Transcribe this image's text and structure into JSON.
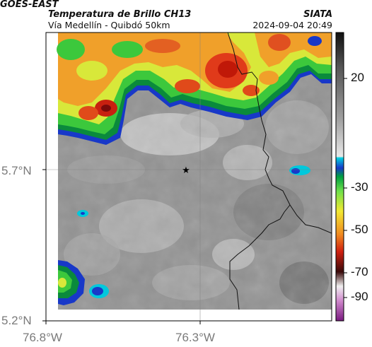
{
  "header": {
    "title_line1": "GOES-EAST",
    "title_line2": "Temperatura de Brillo CH13",
    "subtitle": "Vía Medellín - Quibdó 50km",
    "organization": "SIATA",
    "datetime": "2024-09-04 20:49"
  },
  "axes": {
    "lat_labels": [
      "5.7°N",
      "5.2°N"
    ],
    "lon_labels": [
      "76.8°W",
      "76.3°W"
    ]
  },
  "colorbar": {
    "tick_labels": [
      "20",
      "-30",
      "-50",
      "-70",
      "-90"
    ]
  },
  "marker": {
    "icon": "star-icon"
  },
  "colors": {
    "warm_gray": "#8c8c8c",
    "cloud_light": "#d4d4d4",
    "cold_red": "#e0301a",
    "cold_yellow": "#f2e832",
    "cold_green": "#2ec23a",
    "edge_blue": "#1838c8"
  }
}
